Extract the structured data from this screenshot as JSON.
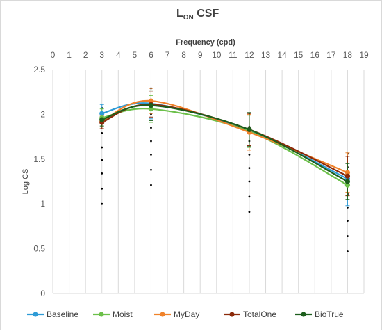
{
  "chart_data": {
    "type": "line",
    "title_main": "L",
    "title_sub": "ON",
    "title_suffix": " CSF",
    "xlabel": "Frequency (cpd)",
    "ylabel": "Log CS",
    "xlim": [
      0,
      19
    ],
    "ylim": [
      0,
      2.5
    ],
    "x_ticks": [
      "0",
      "1",
      "2",
      "3",
      "4",
      "5",
      "6",
      "7",
      "8",
      "9",
      "10",
      "11",
      "12",
      "13",
      "14",
      "15",
      "16",
      "17",
      "18",
      "19"
    ],
    "y_ticks": [
      "0",
      "0.5",
      "1",
      "1.5",
      "2",
      "2.5"
    ],
    "x_axis_position": "top",
    "grid": "vertical",
    "legend_position": "bottom",
    "x": [
      3,
      6,
      12,
      18
    ],
    "series": [
      {
        "name": "Baseline",
        "color": "#2e9bd6",
        "values": [
          2.01,
          2.12,
          1.82,
          1.28
        ],
        "error": [
          0.1,
          0.17,
          0.19,
          0.3
        ]
      },
      {
        "name": "Moist",
        "color": "#6cc04a",
        "values": [
          1.96,
          2.06,
          1.81,
          1.21
        ],
        "error": [
          0.1,
          0.15,
          0.18,
          0.12
        ]
      },
      {
        "name": "MyDay",
        "color": "#f0822a",
        "values": [
          1.92,
          2.15,
          1.8,
          1.35
        ],
        "error": [
          0.08,
          0.14,
          0.2,
          0.22
        ]
      },
      {
        "name": "TotalOne",
        "color": "#8b2a0a",
        "values": [
          1.91,
          2.11,
          1.83,
          1.31
        ],
        "error": [
          0.07,
          0.14,
          0.18,
          0.22
        ]
      },
      {
        "name": "BioTrue",
        "color": "#1c5e1c",
        "values": [
          1.94,
          2.1,
          1.83,
          1.25
        ],
        "error": [
          0.07,
          0.17,
          0.19,
          0.2
        ]
      }
    ],
    "dotted_columns": [
      {
        "x": 3,
        "y": [
          2.07,
          1.93,
          1.79,
          1.63,
          1.49,
          1.34,
          1.17,
          1.0
        ]
      },
      {
        "x": 6,
        "y": [
          2.29,
          2.14,
          2.0,
          1.85,
          1.7,
          1.55,
          1.38,
          1.21
        ]
      },
      {
        "x": 12,
        "y": [
          2.01,
          1.86,
          1.7,
          1.55,
          1.4,
          1.25,
          1.08,
          0.91
        ]
      },
      {
        "x": 18,
        "y": [
          1.56,
          1.41,
          1.26,
          1.11,
          0.96,
          0.81,
          0.64,
          0.47
        ]
      }
    ]
  }
}
